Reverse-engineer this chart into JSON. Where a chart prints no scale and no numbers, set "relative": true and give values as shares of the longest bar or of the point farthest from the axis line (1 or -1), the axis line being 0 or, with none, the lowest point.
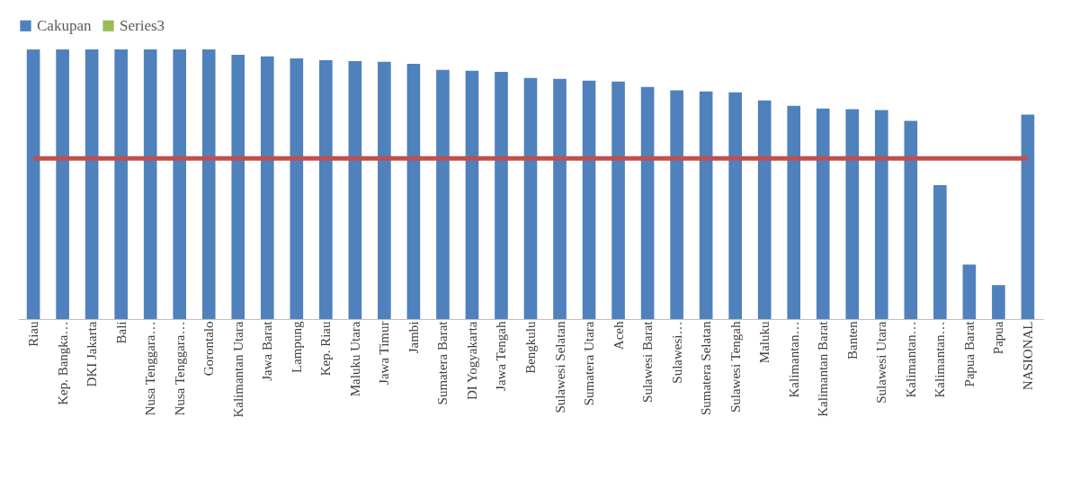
{
  "chart_data": {
    "type": "bar",
    "relative": true,
    "legend": "top",
    "grid": false,
    "categories": [
      "Riau",
      "Kep. Bangka…",
      "DKI Jakarta",
      "Bali",
      "Nusa Tenggara…",
      "Nusa Tenggara…",
      "Gorontalo",
      "Kalimantan Utara",
      "Jawa Barat",
      "Lampung",
      "Kep. Riau",
      "Maluku Utara",
      "Jawa Timur",
      "Jambi",
      "Sumatera Barat",
      "DI Yogyakarta",
      "Jawa Tengah",
      "Bengkulu",
      "Sulawesi Selatan",
      "Sumatera Utara",
      "Aceh",
      "Sulawesi Barat",
      "Sulawesi…",
      "Sumatera Selatan",
      "Sulawesi Tengah",
      "Maluku",
      "Kalimantan…",
      "Kalimantan Barat",
      "Banten",
      "Sulawesi Utara",
      "Kalimantan…",
      "Kalimantan…",
      "Papua Barat",
      "Papua",
      "NASIONAL"
    ],
    "series": [
      {
        "name": "Cakupan",
        "color": "#4f81bd",
        "values": [
          1,
          1,
          1,
          1,
          1,
          1,
          1,
          0.98,
          0.974,
          0.967,
          0.96,
          0.957,
          0.954,
          0.947,
          0.924,
          0.921,
          0.917,
          0.894,
          0.891,
          0.884,
          0.881,
          0.861,
          0.848,
          0.844,
          0.841,
          0.811,
          0.791,
          0.781,
          0.778,
          0.775,
          0.735,
          0.497,
          0.202,
          0.126,
          0.758
        ]
      },
      {
        "name": "Series3",
        "color": "#9bbb59",
        "values": [
          null,
          null,
          null,
          null,
          null,
          null,
          null,
          null,
          null,
          null,
          null,
          null,
          null,
          null,
          null,
          null,
          null,
          null,
          null,
          null,
          null,
          null,
          null,
          null,
          null,
          null,
          null,
          null,
          null,
          null,
          null,
          null,
          null,
          null,
          null
        ]
      },
      {
        "type": "line",
        "color": "#c0504d",
        "values": [
          0.596,
          0.596,
          0.596,
          0.596,
          0.596,
          0.596,
          0.596,
          0.596,
          0.596,
          0.596,
          0.596,
          0.596,
          0.596,
          0.596,
          0.596,
          0.596,
          0.596,
          0.596,
          0.596,
          0.596,
          0.596,
          0.596,
          0.596,
          0.596,
          0.596,
          0.596,
          0.596,
          0.596,
          0.596,
          0.596,
          0.596,
          0.596,
          0.596,
          0.596,
          0.596
        ]
      }
    ]
  }
}
